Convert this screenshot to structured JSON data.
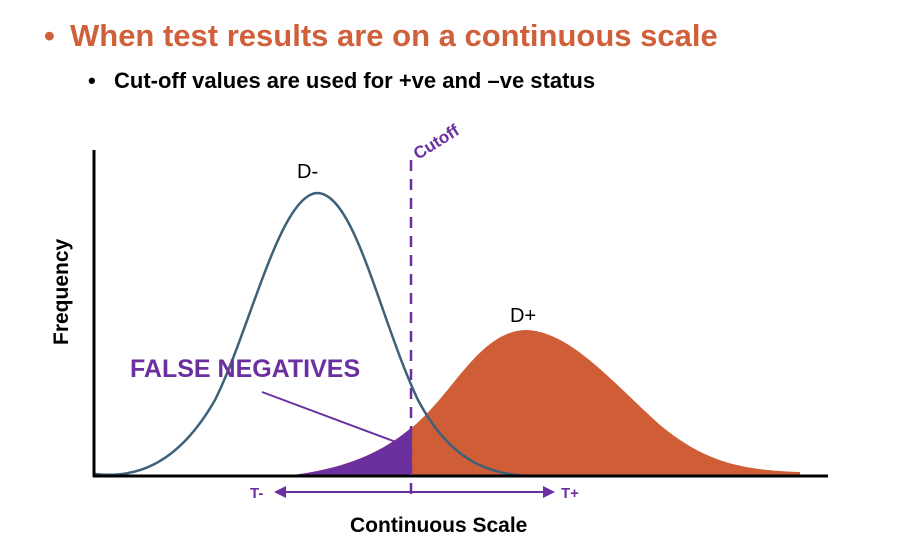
{
  "bullets": {
    "main": "When test results are on a continuous scale",
    "sub": "Cut-off values are used for +ve and –ve status",
    "main_color": "#D0603A"
  },
  "diagram": {
    "y_axis_label": "Frequency",
    "x_axis_label": "Continuous Scale",
    "cutoff_label": "Cutoff",
    "curve_neg_label": "D-",
    "curve_pos_label": "D+",
    "false_negatives_label": "FALSE NEGATIVES",
    "arrow_left_label": "T-",
    "arrow_right_label": "T+",
    "colors": {
      "neg_curve": "#3E6179",
      "pos_fill": "#CF5E36",
      "false_neg_fill": "#6B2FA0",
      "cutoff_line": "#6B2FA0"
    }
  }
}
